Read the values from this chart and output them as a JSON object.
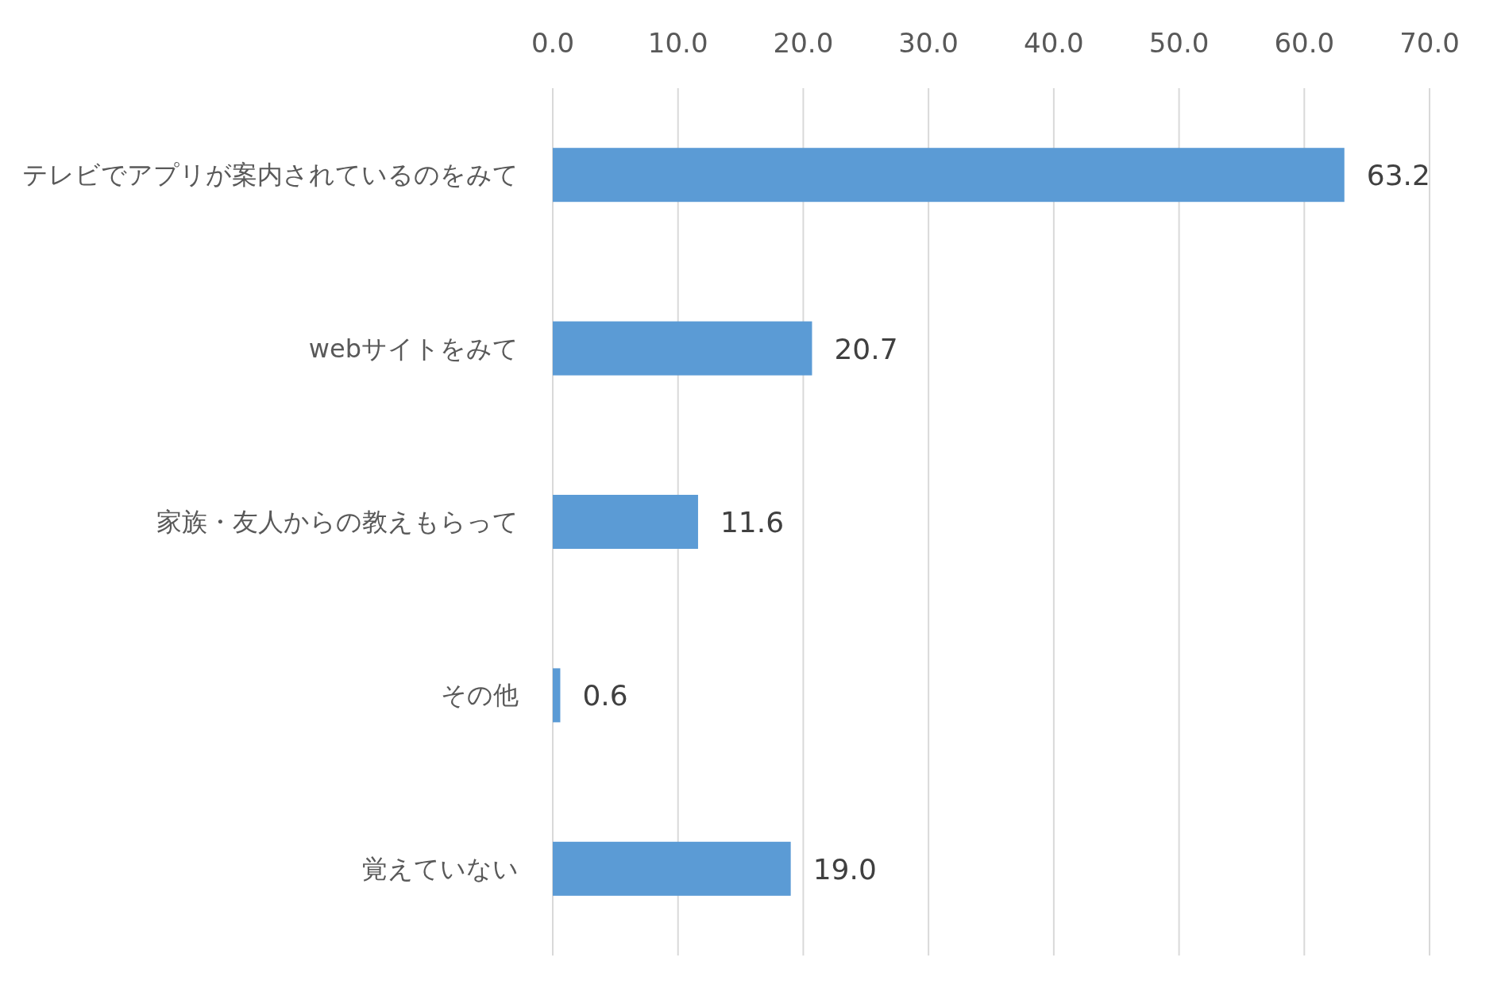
{
  "chart_data": {
    "type": "bar",
    "orientation": "horizontal",
    "categories": [
      "テレビでアプリが案内されているのをみて",
      "webサイトをみて",
      "家族・友人からの教えもらって",
      "その他",
      "覚えていない"
    ],
    "values": [
      63.2,
      20.7,
      11.6,
      0.6,
      19.0
    ],
    "value_labels": [
      "63.2",
      "20.7",
      "11.6",
      "0.6",
      "19.0"
    ],
    "color": "#5b9bd5",
    "xlim": [
      0,
      70
    ],
    "xticks": [
      {
        "value": 0,
        "label": "0.0"
      },
      {
        "value": 10,
        "label": "10.0"
      },
      {
        "value": 20,
        "label": "20.0"
      },
      {
        "value": 30,
        "label": "30.0"
      },
      {
        "value": 40,
        "label": "40.0"
      },
      {
        "value": 50,
        "label": "50.0"
      },
      {
        "value": 60,
        "label": "60.0"
      },
      {
        "value": 70,
        "label": "70.0"
      }
    ],
    "grid": "x"
  }
}
